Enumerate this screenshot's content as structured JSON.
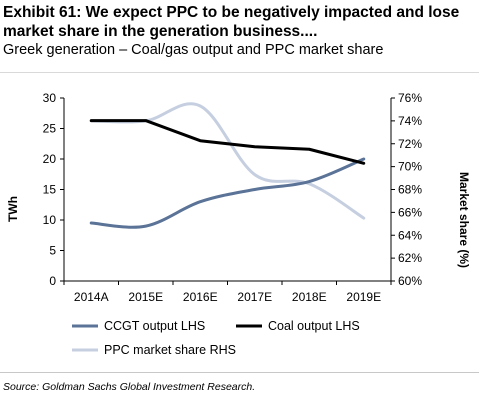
{
  "header": {
    "title": "Exhibit 61: We expect PPC to be negatively impacted and lose market share in the generation business....",
    "subtitle": "Greek generation – Coal/gas output and PPC market share"
  },
  "footer": {
    "source": "Source: Goldman Sachs Global Investment Research."
  },
  "colors": {
    "ccgt": "#5a7397",
    "coal": "#000000",
    "ppc": "#c5cfe0",
    "axis": "#000000"
  },
  "chart_data": {
    "type": "line",
    "categories": [
      "2014A",
      "2015E",
      "2016E",
      "2017E",
      "2018E",
      "2019E"
    ],
    "ylabel": "TWh",
    "ylim": [
      0,
      30
    ],
    "yticks": [
      "0",
      "5",
      "10",
      "15",
      "20",
      "25",
      "30"
    ],
    "y2label": "Market share (%)",
    "y2lim": [
      60,
      76
    ],
    "y2ticks": [
      "60%",
      "62%",
      "64%",
      "66%",
      "68%",
      "70%",
      "72%",
      "74%",
      "76%"
    ],
    "grid": false,
    "legend_position": "bottom",
    "series": [
      {
        "name": "CCGT output LHS",
        "axis": "left",
        "values": [
          9.5,
          9.0,
          13.0,
          15.0,
          16.3,
          20.0
        ]
      },
      {
        "name": "Coal output LHS",
        "axis": "left",
        "values": [
          26.3,
          26.3,
          23.0,
          22.0,
          21.6,
          19.3
        ]
      },
      {
        "name": "PPC market share RHS",
        "axis": "right",
        "values": [
          74.0,
          74.0,
          75.3,
          69.3,
          68.5,
          65.5
        ]
      }
    ]
  }
}
